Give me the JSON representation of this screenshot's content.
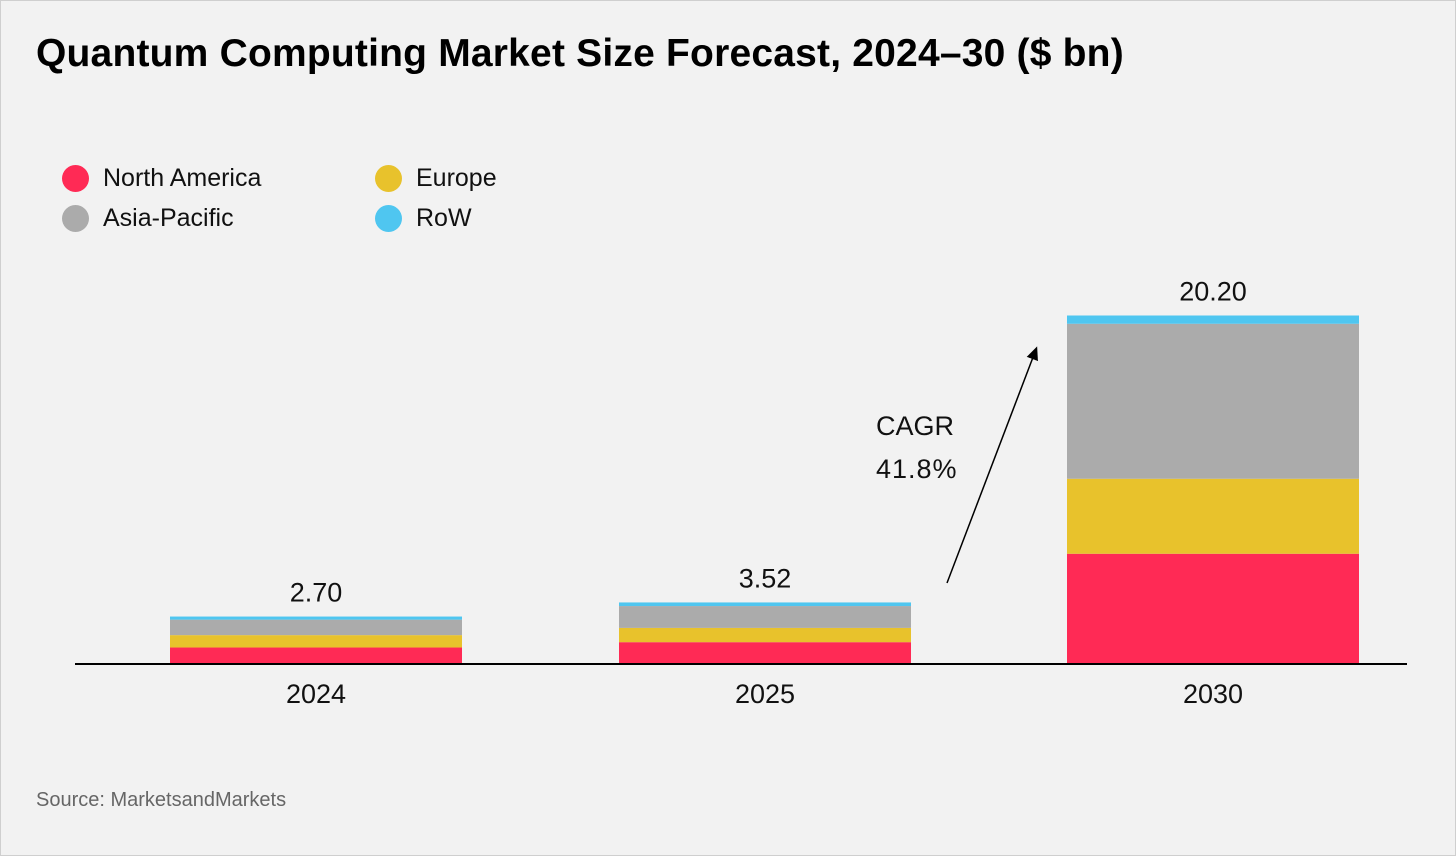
{
  "chart_data": {
    "type": "bar",
    "stacked": true,
    "title": "Quantum Computing Market Size Forecast, 2024–30 ($ bn)",
    "categories": [
      "2024",
      "2025",
      "2030"
    ],
    "series": [
      {
        "name": "North America",
        "color": "#ff2a55",
        "values": [
          0.9,
          1.21,
          6.35
        ]
      },
      {
        "name": "Europe",
        "color": "#e8c22c",
        "values": [
          0.72,
          0.83,
          4.36
        ]
      },
      {
        "name": "Asia-Pacific",
        "color": "#ababab",
        "values": [
          0.9,
          1.27,
          9.01
        ]
      },
      {
        "name": "RoW",
        "color": "#4fc6f0",
        "values": [
          0.18,
          0.21,
          0.48
        ]
      }
    ],
    "totals": [
      "2.70",
      "3.52",
      "20.20"
    ],
    "legend_placement": "top-left",
    "grid": false,
    "ylim": [
      0,
      20.2
    ],
    "annotation": {
      "line1": "CAGR",
      "line2": "41.8%"
    },
    "source": "Source: MarketsandMarkets"
  }
}
